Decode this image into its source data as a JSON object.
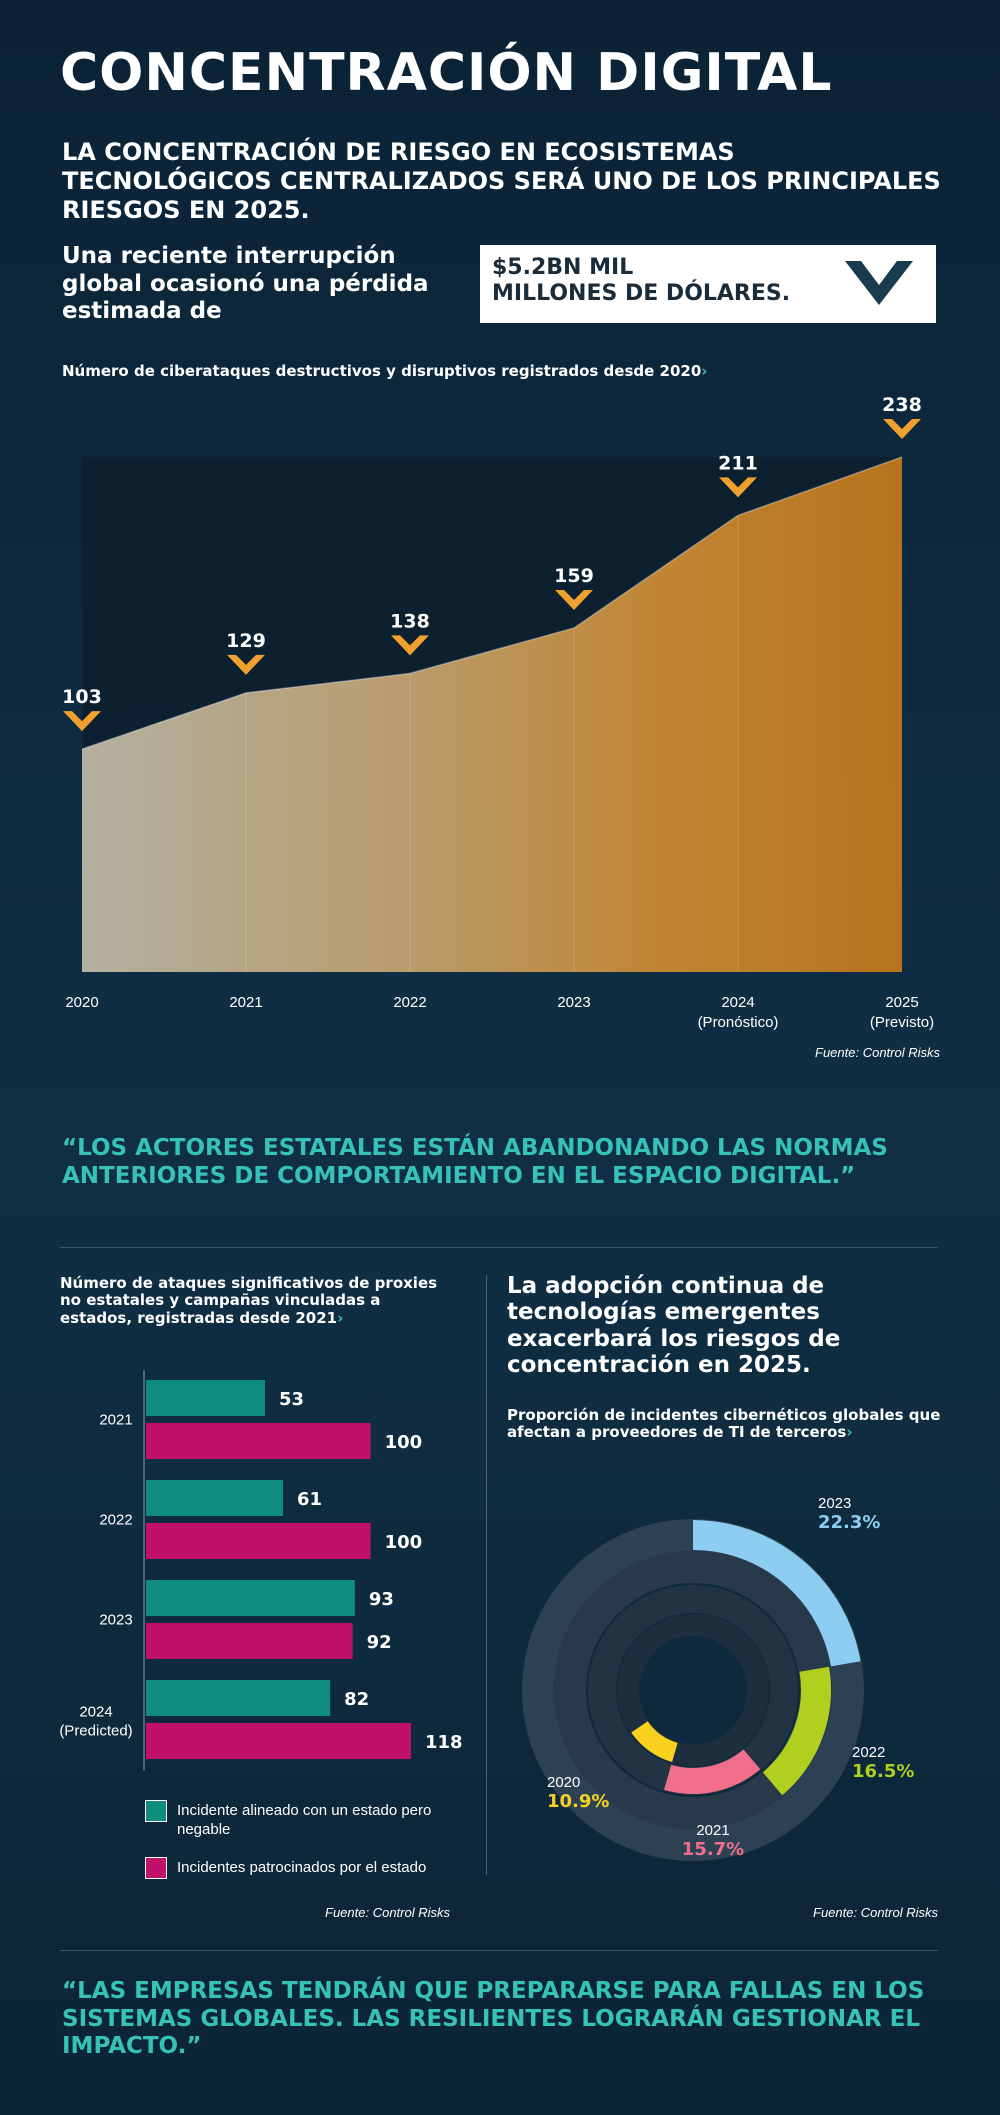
{
  "header": {
    "title": "CONCENTRACIÓN DIGITAL",
    "subtitle": "LA CONCENTRACIÓN DE RIESGO EN ECOSISTEMAS TECNOLÓGICOS CENTRALIZADOS SERÁ UNO DE LOS PRINCIPALES RIESGOS EN 2025."
  },
  "loss": {
    "intro": "Una reciente interrupción global ocasionó una pérdida estimada de",
    "amount_line1": "$5.2BN MIL",
    "amount_line2": "MILLONES DE DÓLARES."
  },
  "chevron_glyph": "›",
  "colors": {
    "orange": "#f0a02c",
    "teal": "#0e8c7e",
    "magenta": "#c0106a",
    "quote": "#36c2b4",
    "donut_2023": "#8ecdf2",
    "donut_2022": "#b0cf1e",
    "donut_2021": "#f0708c",
    "donut_2020": "#f8d020"
  },
  "chart_data": [
    {
      "type": "area",
      "title": "Número de ciberataques destructivos y disruptivos registrados desde 2020",
      "categories": [
        {
          "year": "2020",
          "note": ""
        },
        {
          "year": "2021",
          "note": ""
        },
        {
          "year": "2022",
          "note": ""
        },
        {
          "year": "2023",
          "note": ""
        },
        {
          "year": "2024",
          "note": "(Pronóstico)"
        },
        {
          "year": "2025",
          "note": "(Previsto)"
        }
      ],
      "values": [
        103,
        129,
        138,
        159,
        211,
        238
      ],
      "ylim": [
        0,
        238
      ],
      "source": "Fuente: Control Risks"
    },
    {
      "type": "bar",
      "orientation": "horizontal",
      "title": "Número de ataques significativos de proxies no estatales y campañas vinculadas a estados, registradas desde 2021",
      "categories": [
        {
          "label_line1": "2021",
          "label_line2": ""
        },
        {
          "label_line1": "2022",
          "label_line2": ""
        },
        {
          "label_line1": "2023",
          "label_line2": ""
        },
        {
          "label_line1": "2024",
          "label_line2": "(Predicted)"
        }
      ],
      "series": [
        {
          "name": "Incidente alineado con un estado pero negable",
          "color": "#0e8c7e",
          "values": [
            53,
            61,
            93,
            82
          ]
        },
        {
          "name": "Incidentes patrocinados por el estado",
          "color": "#c0106a",
          "values": [
            100,
            100,
            92,
            118
          ]
        }
      ],
      "xlim": [
        0,
        118
      ],
      "source": "Fuente: Control Risks"
    },
    {
      "type": "pie",
      "style": "concentric-donut",
      "heading": "La adopción continua de tecnologías emergentes exacerbará los riesgos de concentración en 2025.",
      "title": "Proporción de incidentes cibernéticos globales que afectan a proveedores de TI de terceros",
      "rings": [
        {
          "year": "2023",
          "value": 22.3,
          "label": "22.3%",
          "color": "#8ecdf2"
        },
        {
          "year": "2022",
          "value": 16.5,
          "label": "16.5%",
          "color": "#b0cf1e"
        },
        {
          "year": "2021",
          "value": 15.7,
          "label": "15.7%",
          "color": "#f0708c"
        },
        {
          "year": "2020",
          "value": 10.9,
          "label": "10.9%",
          "color": "#f8d020"
        }
      ],
      "source": "Fuente: Control Risks"
    }
  ],
  "quotes": {
    "q1": "“LOS ACTORES ESTATALES ESTÁN ABANDONANDO LAS NORMAS ANTERIORES DE COMPORTAMIENTO EN EL ESPACIO DIGITAL.”",
    "q2": "“LAS EMPRESAS TENDRÁN QUE PREPARARSE PARA FALLAS EN LOS SISTEMAS GLOBALES. LAS RESILIENTES LOGRARÁN GESTIONAR EL IMPACTO.”"
  }
}
